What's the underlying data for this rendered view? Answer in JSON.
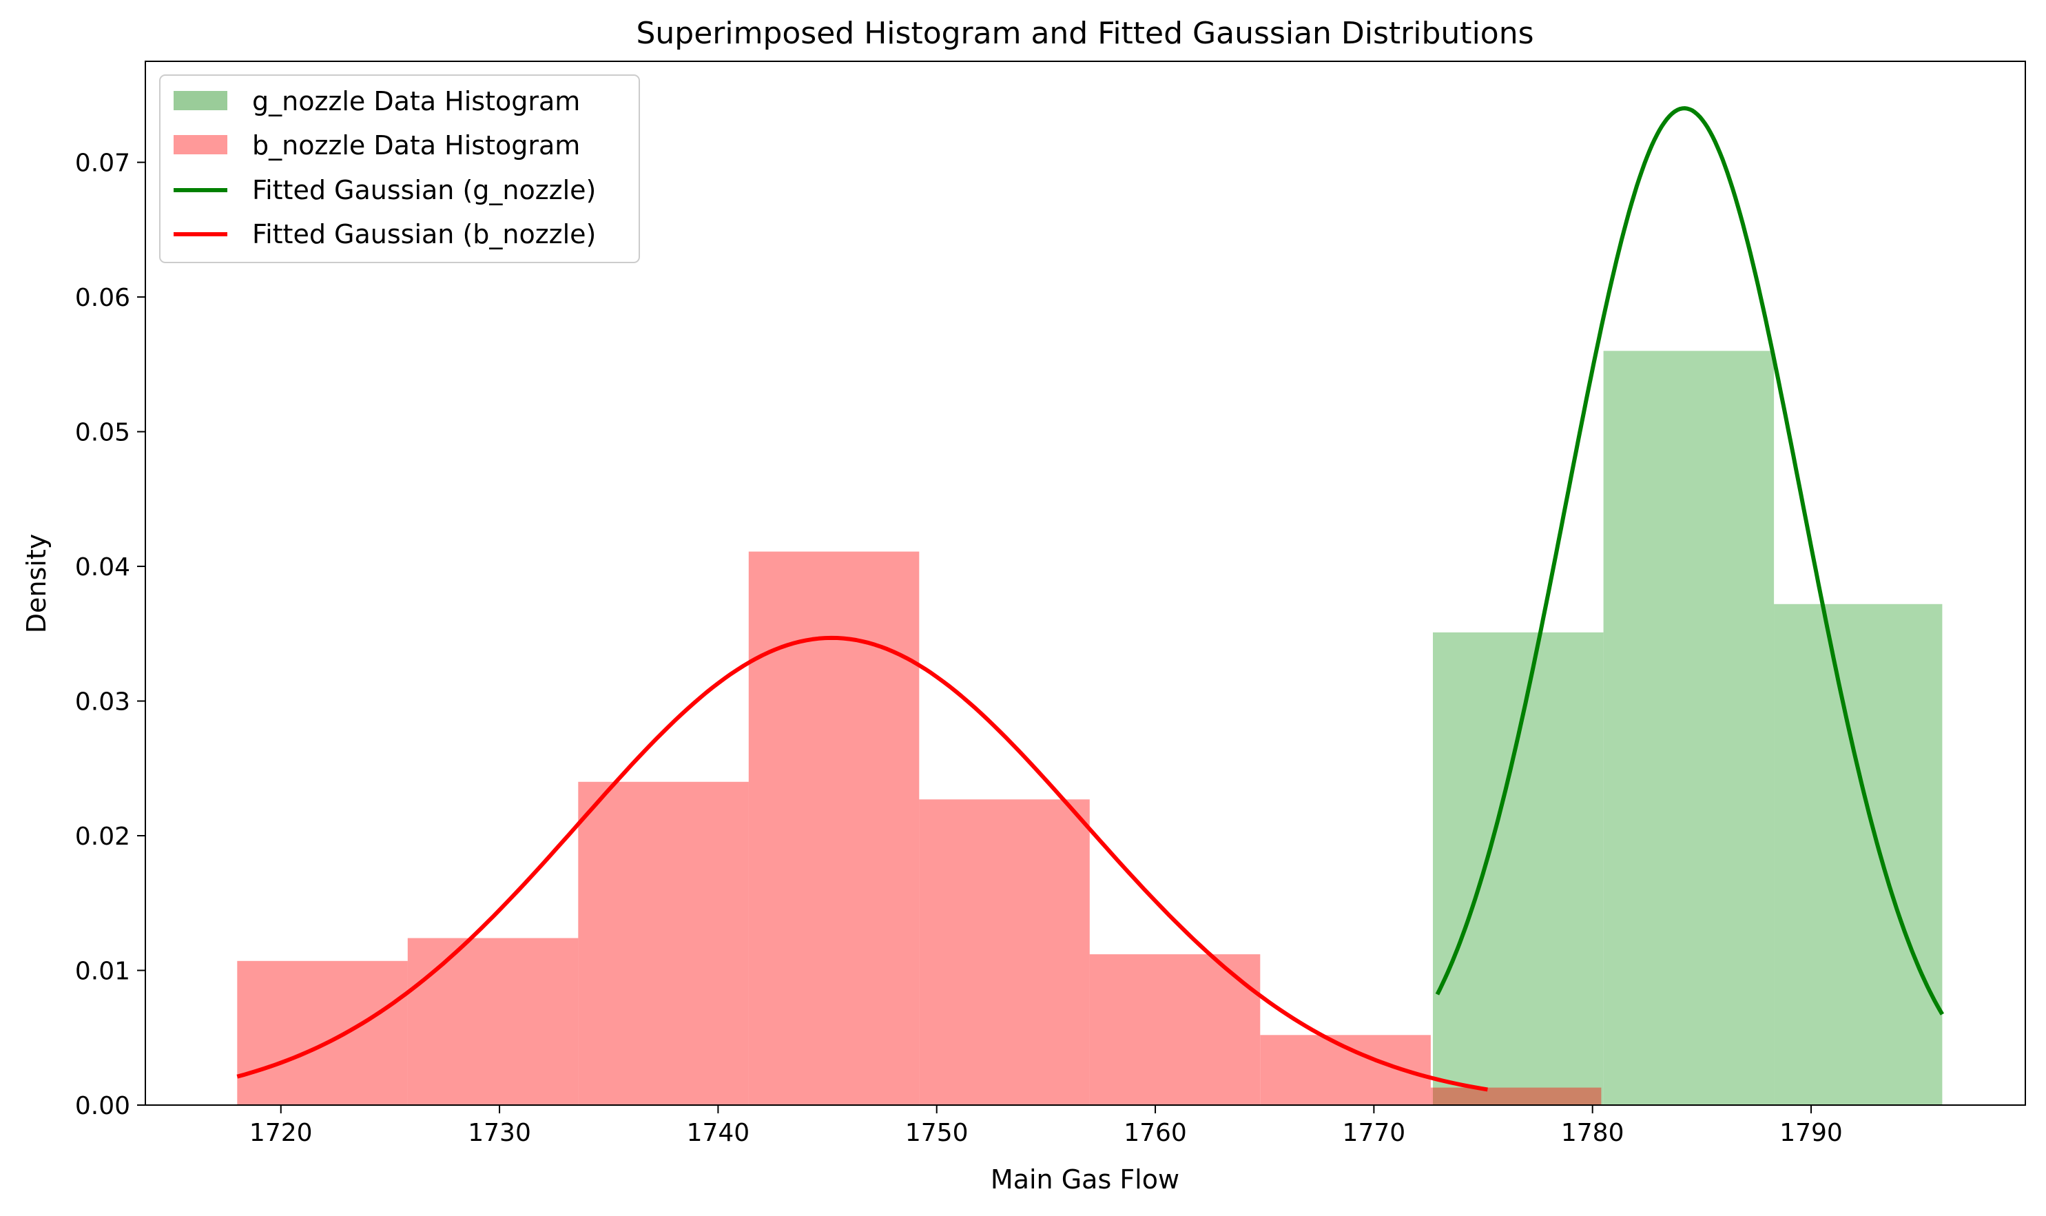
{
  "chart_data": {
    "type": "bar",
    "title": "Superimposed Histogram and Fitted Gaussian Distributions",
    "xlabel": "Main Gas Flow",
    "ylabel": "Density",
    "xlim": [
      1713.8,
      1799.8
    ],
    "ylim": [
      0.0,
      0.0775
    ],
    "xticks": [
      1720,
      1730,
      1740,
      1750,
      1760,
      1770,
      1780,
      1790
    ],
    "yticks": [
      0.0,
      0.01,
      0.02,
      0.03,
      0.04,
      0.05,
      0.06,
      0.07
    ],
    "xtick_labels": [
      "1720",
      "1730",
      "1740",
      "1750",
      "1760",
      "1770",
      "1780",
      "1790"
    ],
    "ytick_labels": [
      "0.00",
      "0.01",
      "0.02",
      "0.03",
      "0.04",
      "0.05",
      "0.06",
      "0.07"
    ],
    "grid": false,
    "legend_position": "upper-left",
    "histograms": [
      {
        "name": "g_nozzle Data Histogram",
        "color": "#2ca02c",
        "render_color": "#9acc99",
        "bins": [
          {
            "x0": 1772.7,
            "x1": 1780.5,
            "density": 0.0351
          },
          {
            "x0": 1780.5,
            "x1": 1788.3,
            "density": 0.056
          },
          {
            "x0": 1788.3,
            "x1": 1796.0,
            "density": 0.0372
          }
        ]
      },
      {
        "name": "b_nozzle Data Histogram",
        "color": "#ff0000",
        "render_color": "#ff9999",
        "bins": [
          {
            "x0": 1718.0,
            "x1": 1725.8,
            "density": 0.0107
          },
          {
            "x0": 1725.8,
            "x1": 1733.6,
            "density": 0.0124
          },
          {
            "x0": 1733.6,
            "x1": 1741.4,
            "density": 0.024
          },
          {
            "x0": 1741.4,
            "x1": 1749.2,
            "density": 0.0411
          },
          {
            "x0": 1749.2,
            "x1": 1757.0,
            "density": 0.0227
          },
          {
            "x0": 1757.0,
            "x1": 1764.8,
            "density": 0.0112
          },
          {
            "x0": 1764.8,
            "x1": 1772.6,
            "density": 0.0052
          },
          {
            "x0": 1772.6,
            "x1": 1780.4,
            "density": 0.0013
          }
        ]
      }
    ],
    "series": [
      {
        "name": "Fitted Gaussian (g_nozzle)",
        "color": "#008000",
        "mean": 1784.2,
        "std": 5.39,
        "x_range": [
          1772.9,
          1796.0
        ]
      },
      {
        "name": "Fitted Gaussian (b_nozzle)",
        "color": "#ff0000",
        "mean": 1745.2,
        "std": 11.5,
        "x_range": [
          1718.0,
          1775.2
        ]
      }
    ]
  }
}
